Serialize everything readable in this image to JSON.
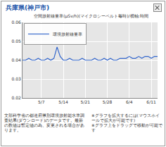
{
  "window": {
    "title": "兵庫県(神戸市)",
    "notes_left": "文部科学省の都道府県別環境放射能水準調査結果(ダウンロード)のデータです。最新の数値は暫定値の為、変更される場合があります。",
    "notes_right": [
      "※グラフを拡大するには(マウスホイールで拡大が可能です)",
      "※グラフ上をドラッグで移動が可能です"
    ]
  },
  "chart_data": {
    "type": "line",
    "title": "空間放射線量率(μSv/h)(マイクロシーベルト毎時)/横軸:時間",
    "categories": [
      null,
      null,
      null,
      null,
      null,
      null,
      "5/7",
      null,
      null,
      null,
      null,
      null,
      null,
      "5/14",
      null,
      null,
      null,
      null,
      null,
      null,
      "5/21",
      null,
      null,
      null,
      null,
      null,
      null,
      "5/28",
      null,
      null,
      null,
      null,
      null,
      null,
      "6/4",
      null,
      null,
      null,
      null,
      null,
      null,
      "6/11",
      null,
      null
    ],
    "series": [
      {
        "name": "環境放射線量率",
        "color": "#3366cc",
        "values": [
          0.04,
          0.04,
          0.041,
          0.04,
          0.04,
          0.041,
          0.04,
          0.04,
          0.041,
          0.04,
          0.041,
          0.047,
          0.042,
          0.04,
          0.04,
          0.041,
          0.04,
          0.04,
          0.04,
          0.041,
          0.04,
          0.04,
          0.04,
          0.041,
          0.04,
          0.04,
          0.041,
          0.04,
          0.041,
          0.04,
          0.04,
          0.041,
          0.041,
          0.041,
          0.042,
          0.041,
          0.041,
          0.042,
          0.041,
          0.042,
          0.042,
          0.041,
          0.042,
          0.042
        ]
      }
    ],
    "ylim": [
      0.02,
      0.06
    ],
    "yticks": [
      0.02,
      0.03,
      0.04,
      0.05,
      0.06
    ],
    "grid": true,
    "legend": "top-left"
  }
}
